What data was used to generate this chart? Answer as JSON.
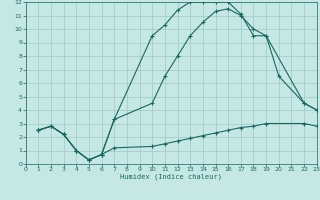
{
  "xlabel": "Humidex (Indice chaleur)",
  "bg_color": "#c5e8e5",
  "grid_color": "#9fc8c5",
  "line_color": "#1a6860",
  "xlim": [
    0,
    23
  ],
  "ylim": [
    0,
    12
  ],
  "xticks": [
    0,
    1,
    2,
    3,
    4,
    5,
    6,
    7,
    8,
    9,
    10,
    11,
    12,
    13,
    14,
    15,
    16,
    17,
    18,
    19,
    20,
    21,
    22,
    23
  ],
  "yticks": [
    0,
    1,
    2,
    3,
    4,
    5,
    6,
    7,
    8,
    9,
    10,
    11,
    12
  ],
  "curve_flat_x": [
    1,
    2,
    3,
    4,
    5,
    6,
    7,
    10,
    11,
    12,
    13,
    14,
    15,
    16,
    17,
    18,
    19,
    22,
    23
  ],
  "curve_flat_y": [
    2.5,
    2.8,
    2.2,
    1.0,
    0.3,
    0.7,
    1.2,
    1.3,
    1.5,
    1.7,
    1.9,
    2.1,
    2.3,
    2.5,
    2.7,
    2.8,
    3.0,
    3.0,
    2.8
  ],
  "curve_upper_x": [
    1,
    2,
    3,
    4,
    5,
    6,
    7,
    10,
    11,
    12,
    13,
    14,
    15,
    16,
    17,
    18,
    19,
    22,
    23
  ],
  "curve_upper_y": [
    2.5,
    2.8,
    2.2,
    1.0,
    0.3,
    0.7,
    3.3,
    9.5,
    10.3,
    11.4,
    12.0,
    12.0,
    12.0,
    12.0,
    11.1,
    9.5,
    9.5,
    4.5,
    4.0
  ],
  "curve_mid_x": [
    1,
    2,
    3,
    4,
    5,
    6,
    7,
    10,
    11,
    12,
    13,
    14,
    15,
    16,
    17,
    18,
    19,
    20,
    22,
    23
  ],
  "curve_mid_y": [
    2.5,
    2.8,
    2.2,
    1.0,
    0.3,
    0.7,
    3.3,
    4.5,
    6.5,
    8.0,
    9.5,
    10.5,
    11.3,
    11.5,
    11.0,
    10.0,
    9.5,
    6.5,
    4.5,
    4.0
  ]
}
